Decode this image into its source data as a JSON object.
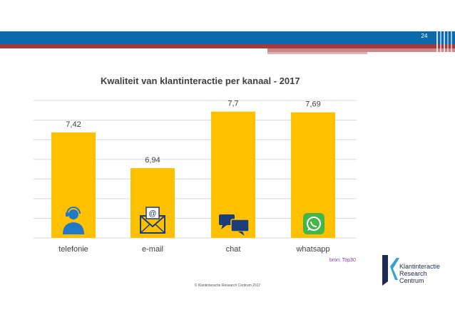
{
  "page_number": "24",
  "colors": {
    "header_blue": "#0a6aab",
    "header_red": "#a23b3e",
    "bar": "#ffc000",
    "icon": "#1f78c8",
    "whatsapp": "#43b649",
    "grid": "#d9d9d9"
  },
  "chart_data": {
    "type": "bar",
    "title": "Kwaliteit van klantinteractie per kanaal - 2017",
    "categories": [
      "telefonie",
      "e-mail",
      "chat",
      "whatsapp"
    ],
    "values": [
      7.42,
      6.94,
      7.7,
      7.69
    ],
    "value_labels": [
      "7,42",
      "6,94",
      "7,7",
      "7,69"
    ],
    "icons": [
      "headset-icon",
      "envelope-icon",
      "chat-bubbles-icon",
      "whatsapp-icon"
    ],
    "ylim": [
      6.0,
      7.85
    ],
    "grid": true,
    "xlabel": "",
    "ylabel": ""
  },
  "source_note": "bron: Top30",
  "copyright": "© Klantinteractie Research Centrum 2017",
  "logo": {
    "line1": "Klantinteractie",
    "line2": "Research",
    "line3": "Centrum"
  }
}
